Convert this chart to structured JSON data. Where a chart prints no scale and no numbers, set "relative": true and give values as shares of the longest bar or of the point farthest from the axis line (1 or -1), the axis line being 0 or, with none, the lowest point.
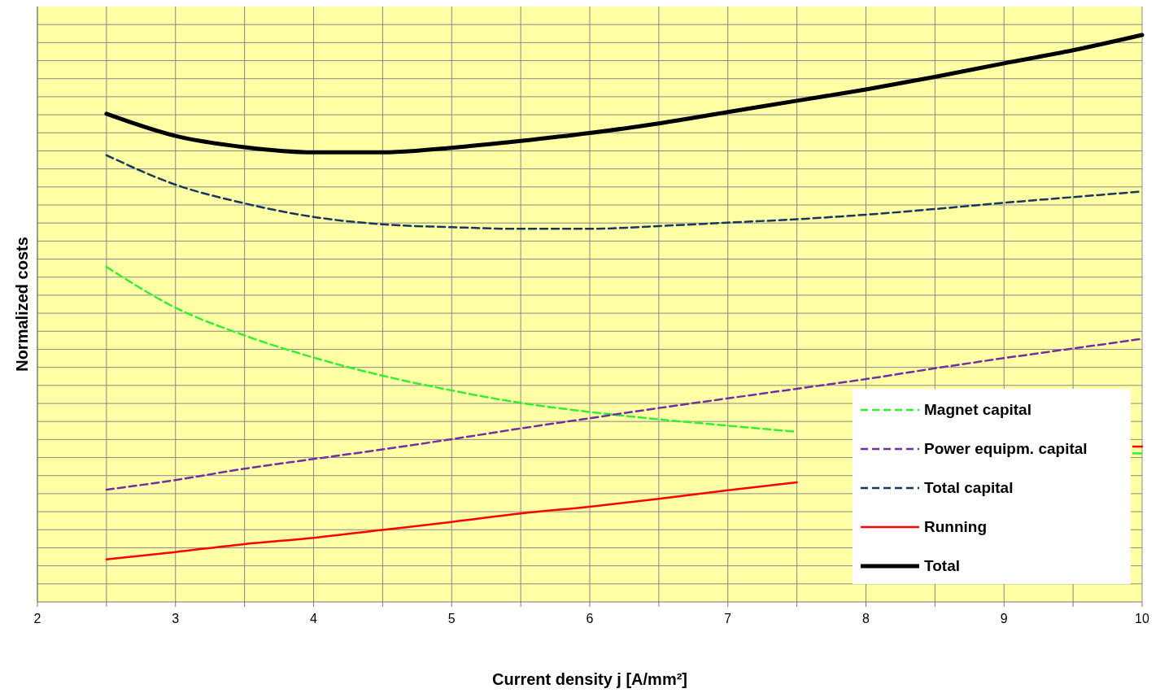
{
  "chart_data": {
    "type": "line",
    "relative": true,
    "xlabel": "Current density j [A/mm²]",
    "ylabel": "Normalized costs",
    "xlim": [
      2,
      10
    ],
    "xticks": [
      2,
      {
        "value": 2.5,
        "label": null
      },
      3,
      {
        "value": 3.5,
        "label": null
      },
      4,
      {
        "value": 4.5,
        "label": null
      },
      5,
      {
        "value": 5.5,
        "label": null
      },
      6,
      {
        "value": 6.5,
        "label": null
      },
      7,
      {
        "value": 7.5,
        "label": null
      },
      8,
      {
        "value": 8.5,
        "label": null
      },
      9,
      {
        "value": 9.5,
        "label": null
      },
      10
    ],
    "grid": true,
    "legend": "bottom right",
    "marker": "none",
    "x": [
      2.5,
      3,
      3.5,
      4,
      4.5,
      5,
      5.5,
      6,
      6.5,
      7,
      7.5,
      8,
      8.5,
      9,
      9.5,
      10
    ],
    "series": [
      {
        "name": "Magnet capital",
        "color": "#33ee33",
        "line_style": "dashed",
        "values": [
          0.591,
          0.519,
          0.47,
          0.431,
          0.399,
          0.373,
          0.351,
          0.335,
          0.322,
          0.311,
          0.3,
          null,
          null,
          null,
          null,
          0.262
        ]
      },
      {
        "name": "Power equipm. capital",
        "color": "#7030a0",
        "line_style": "dashed",
        "values": [
          0.198,
          0.215,
          0.235,
          0.252,
          0.269,
          0.287,
          0.306,
          0.324,
          0.342,
          0.359,
          0.376,
          0.393,
          0.412,
          0.43,
          0.447,
          0.464
        ]
      },
      {
        "name": "Total capital",
        "color": "#17375e",
        "line_style": "dashed",
        "values": [
          0.788,
          0.736,
          0.703,
          0.679,
          0.666,
          0.661,
          0.658,
          0.658,
          0.663,
          0.669,
          0.675,
          0.683,
          0.693,
          0.704,
          0.714,
          0.724
        ]
      },
      {
        "name": "Running",
        "color": "#ff0000",
        "line_style": "solid",
        "values": [
          0.075,
          0.088,
          0.102,
          0.113,
          0.127,
          0.141,
          0.156,
          0.168,
          0.182,
          0.197,
          0.211,
          null,
          null,
          null,
          null,
          0.274
        ]
      },
      {
        "name": "Total",
        "color": "#000000",
        "line_style": "solid",
        "values": [
          0.861,
          0.822,
          0.802,
          0.793,
          0.793,
          0.801,
          0.813,
          0.827,
          0.844,
          0.864,
          0.884,
          0.904,
          0.926,
          0.95,
          0.973,
          1
        ]
      }
    ]
  }
}
